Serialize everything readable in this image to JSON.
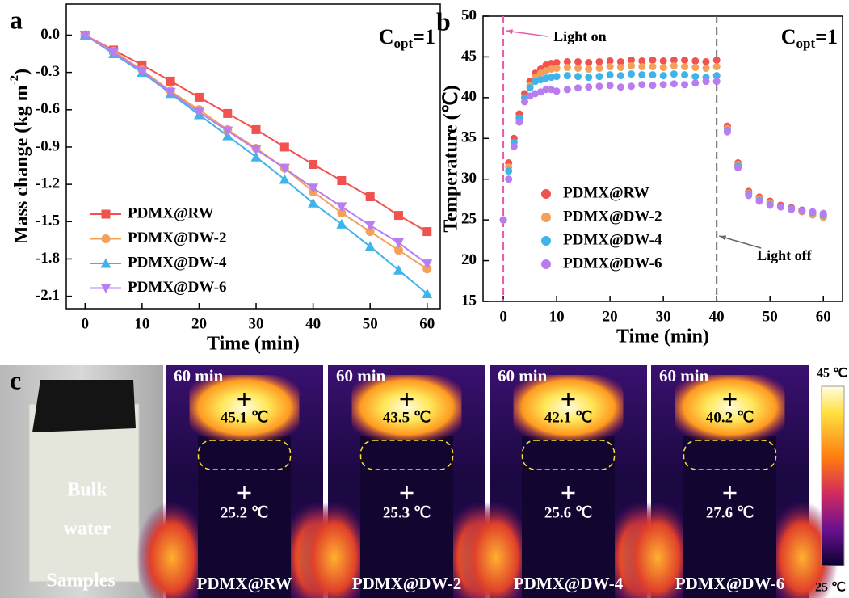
{
  "chart_data": [
    {
      "type": "line",
      "panel_label": "a",
      "annotation": {
        "base": "C",
        "subscript": "opt",
        "rest": "=1"
      },
      "xlabel": "Time (min)",
      "ylabel": {
        "text": "Mass change (kg  m",
        "superscript": "-2",
        "tail": ")"
      },
      "x": [
        0,
        5,
        10,
        15,
        20,
        25,
        30,
        35,
        40,
        45,
        50,
        55,
        60
      ],
      "series": [
        {
          "name": "PDMX@RW",
          "color": "#f0524f",
          "marker": "square",
          "values": [
            0,
            -0.12,
            -0.24,
            -0.37,
            -0.5,
            -0.63,
            -0.76,
            -0.9,
            -1.04,
            -1.17,
            -1.3,
            -1.45,
            -1.58
          ]
        },
        {
          "name": "PDMX@DW-2",
          "color": "#f5a05a",
          "marker": "circle",
          "values": [
            0,
            -0.13,
            -0.28,
            -0.45,
            -0.6,
            -0.76,
            -0.91,
            -1.07,
            -1.26,
            -1.43,
            -1.58,
            -1.73,
            -1.88
          ]
        },
        {
          "name": "PDMX@DW-4",
          "color": "#40b4e8",
          "marker": "triangle-up",
          "values": [
            0,
            -0.15,
            -0.3,
            -0.47,
            -0.64,
            -0.81,
            -0.98,
            -1.16,
            -1.35,
            -1.52,
            -1.7,
            -1.89,
            -2.08
          ]
        },
        {
          "name": "PDMX@DW-6",
          "color": "#b87ef0",
          "marker": "triangle-down",
          "values": [
            0,
            -0.14,
            -0.29,
            -0.46,
            -0.62,
            -0.77,
            -0.92,
            -1.07,
            -1.23,
            -1.38,
            -1.53,
            -1.67,
            -1.84
          ]
        }
      ],
      "xlim": [
        -3.3,
        62.3
      ],
      "ylim": [
        -2.2,
        0.25
      ],
      "xticks": [
        0,
        10,
        20,
        30,
        40,
        50,
        60
      ],
      "yticks": [
        {
          "value": 0,
          "label": "0.0"
        },
        -0.3,
        -0.6,
        -0.9,
        -1.2,
        -1.5,
        -1.8,
        -2.1
      ],
      "legend_loc": "lower left"
    },
    {
      "type": "scatter",
      "panel_label": "b",
      "annotation": {
        "base": "C",
        "subscript": "opt",
        "rest": "=1"
      },
      "xlabel": "Time (min)",
      "ylabel": "Temperature (℃)",
      "x": [
        0,
        1,
        2,
        3,
        4,
        5,
        6,
        7,
        8,
        9,
        10,
        12,
        14,
        16,
        18,
        20,
        22,
        24,
        26,
        28,
        30,
        32,
        34,
        36,
        38,
        40,
        42,
        44,
        46,
        48,
        50,
        52,
        54,
        56,
        58,
        60
      ],
      "series": [
        {
          "name": "PDMX@RW",
          "color": "#f0524f",
          "values": [
            25,
            32,
            35,
            38,
            40.5,
            42,
            43,
            43.5,
            44,
            44.2,
            44.3,
            44.4,
            44.4,
            44.3,
            44.4,
            44.5,
            44.4,
            44.6,
            44.5,
            44.6,
            44.5,
            44.6,
            44.6,
            44.5,
            44.4,
            44.6,
            36.5,
            32,
            28.5,
            27.8,
            27.3,
            26.8,
            26.5,
            26.2,
            25.8,
            25.5
          ]
        },
        {
          "name": "PDMX@DW-2",
          "color": "#f5a05a",
          "values": [
            25,
            31.5,
            34.5,
            37.5,
            40,
            41.5,
            42.5,
            43,
            43.3,
            43.5,
            43.6,
            43.7,
            43.6,
            43.5,
            43.6,
            43.8,
            43.7,
            43.9,
            43.8,
            43.8,
            43.7,
            43.9,
            43.8,
            43.7,
            43.6,
            43.8,
            36.2,
            31.8,
            28.3,
            27.6,
            27.1,
            26.6,
            26.3,
            26.0,
            25.6,
            25.3
          ]
        },
        {
          "name": "PDMX@DW-4",
          "color": "#40b4e8",
          "values": [
            25,
            31,
            34.5,
            37.5,
            40,
            41.2,
            42,
            42.2,
            42.4,
            42.5,
            42.6,
            42.7,
            42.6,
            42.5,
            42.6,
            42.8,
            42.7,
            42.9,
            42.8,
            42.8,
            42.7,
            42.9,
            42.8,
            42.6,
            42.5,
            42.7,
            36,
            31.6,
            28.2,
            27.4,
            26.9,
            26.6,
            26.4,
            26.1,
            25.9,
            25.6
          ]
        },
        {
          "name": "PDMX@DW-6",
          "color": "#b87ef0",
          "values": [
            25,
            30,
            34,
            37,
            39.5,
            40.2,
            40.5,
            40.7,
            41,
            41,
            40.8,
            41,
            41.2,
            41.3,
            41.4,
            41.5,
            41.3,
            41.4,
            41.6,
            41.5,
            41.6,
            41.7,
            41.6,
            41.8,
            42,
            42,
            35.8,
            31.4,
            28,
            27.3,
            26.8,
            26.6,
            26.3,
            26.1,
            26,
            25.8
          ]
        }
      ],
      "xlim": [
        -3.8,
        63.6
      ],
      "ylim": [
        15,
        50
      ],
      "xticks": [
        0,
        10,
        20,
        30,
        40,
        50,
        60
      ],
      "yticks": [
        15,
        20,
        25,
        30,
        35,
        40,
        45,
        50
      ],
      "vlines": [
        0,
        40
      ],
      "vline_colors": [
        "#e85aa8",
        "#666666"
      ],
      "annotations": [
        "Light on",
        "Light off"
      ],
      "legend_loc": "center left"
    }
  ],
  "panel_c": {
    "label": "c",
    "photo": {
      "lines": [
        "Bulk",
        "water"
      ],
      "caption": "Samples"
    },
    "images": [
      {
        "time": "60 min",
        "top": "45.1 ℃",
        "bottom": "25.2 ℃",
        "name": "PDMX@RW"
      },
      {
        "time": "60 min",
        "top": "43.5 ℃",
        "bottom": "25.3 ℃",
        "name": "PDMX@DW-2"
      },
      {
        "time": "60 min",
        "top": "42.1 ℃",
        "bottom": "25.6 ℃",
        "name": "PDMX@DW-4"
      },
      {
        "time": "60 min",
        "top": "40.2 ℃",
        "bottom": "27.6 ℃",
        "name": "PDMX@DW-6"
      }
    ],
    "colorbar": {
      "max": "45 ℃",
      "min": "25 ℃"
    }
  }
}
